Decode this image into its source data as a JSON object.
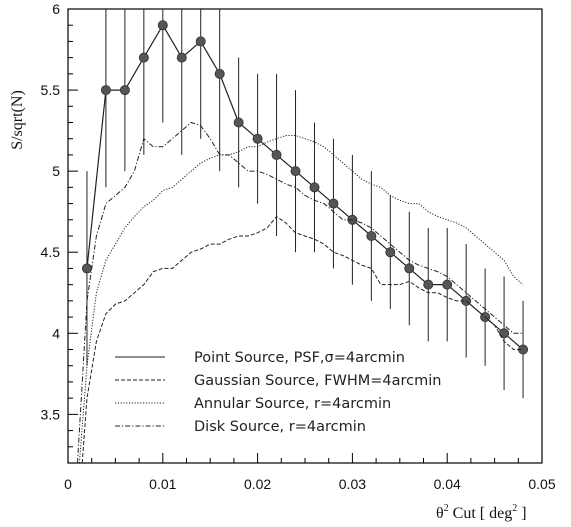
{
  "chart_data": {
    "type": "line",
    "xlabel_pre": "θ",
    "xlabel_sup": "2",
    "xlabel_mid": " Cut [ deg",
    "xlabel_sup2": "2",
    "xlabel_post": " ]",
    "ylabel": "S/sqrt(N)",
    "xlim": [
      0,
      0.05
    ],
    "ylim": [
      3.2,
      6
    ],
    "x_ticks": [
      0,
      0.01,
      0.02,
      0.03,
      0.04,
      0.05
    ],
    "y_ticks": [
      3.5,
      4,
      4.5,
      5,
      5.5,
      6
    ],
    "x_tick_labels": [
      "0",
      "0.01",
      "0.02",
      "0.03",
      "0.04",
      "0.05"
    ],
    "y_tick_labels": [
      "3.5",
      "4",
      "4.5",
      "5",
      "5.5",
      "6"
    ],
    "grid": false,
    "legend_position": "bottom-left",
    "series": [
      {
        "name": "Point Source, PSF,σ=4arcmin",
        "style": "solid",
        "markers": true,
        "error_bars": true,
        "x": [
          0.002,
          0.004,
          0.006,
          0.008,
          0.01,
          0.012,
          0.014,
          0.016,
          0.018,
          0.02,
          0.022,
          0.024,
          0.026,
          0.028,
          0.03,
          0.032,
          0.034,
          0.036,
          0.038,
          0.04,
          0.042,
          0.044,
          0.046,
          0.048
        ],
        "y": [
          4.4,
          5.5,
          5.5,
          5.7,
          5.9,
          5.7,
          5.8,
          5.6,
          5.3,
          5.2,
          5.1,
          5.0,
          4.9,
          4.8,
          4.7,
          4.6,
          4.5,
          4.4,
          4.3,
          4.3,
          4.2,
          4.1,
          4.0,
          3.9
        ],
        "err": [
          0.6,
          0.6,
          0.5,
          0.6,
          0.6,
          0.6,
          0.6,
          0.6,
          0.4,
          0.4,
          0.5,
          0.5,
          0.4,
          0.4,
          0.4,
          0.4,
          0.35,
          0.35,
          0.35,
          0.35,
          0.35,
          0.3,
          0.35,
          0.3
        ]
      },
      {
        "name": "Gaussian Source, FWHM=4arcmin",
        "style": "dashed",
        "x": [
          0.0015,
          0.002,
          0.003,
          0.004,
          0.005,
          0.006,
          0.007,
          0.008,
          0.009,
          0.01,
          0.011,
          0.012,
          0.013,
          0.014,
          0.015,
          0.016,
          0.017,
          0.018,
          0.019,
          0.02,
          0.021,
          0.022,
          0.023,
          0.024,
          0.025,
          0.026,
          0.027,
          0.028,
          0.029,
          0.03,
          0.031,
          0.032,
          0.033,
          0.034,
          0.035,
          0.036,
          0.037,
          0.038,
          0.039,
          0.04,
          0.041,
          0.042,
          0.043,
          0.044,
          0.045,
          0.046,
          0.047,
          0.048
        ],
        "y": [
          3.2,
          3.6,
          3.95,
          4.12,
          4.18,
          4.2,
          4.25,
          4.3,
          4.38,
          4.4,
          4.4,
          4.45,
          4.5,
          4.52,
          4.55,
          4.55,
          4.58,
          4.6,
          4.6,
          4.62,
          4.65,
          4.72,
          4.68,
          4.62,
          4.6,
          4.58,
          4.55,
          4.5,
          4.48,
          4.45,
          4.42,
          4.4,
          4.3,
          4.3,
          4.3,
          4.32,
          4.28,
          4.25,
          4.25,
          4.22,
          4.2,
          4.2,
          4.15,
          4.1,
          4.05,
          3.95,
          3.9,
          3.9
        ]
      },
      {
        "name": "Annular Source, r=4arcmin",
        "style": "dotted",
        "x": [
          0.0012,
          0.002,
          0.003,
          0.004,
          0.005,
          0.006,
          0.007,
          0.008,
          0.009,
          0.01,
          0.011,
          0.012,
          0.013,
          0.014,
          0.015,
          0.016,
          0.017,
          0.018,
          0.019,
          0.02,
          0.021,
          0.022,
          0.023,
          0.024,
          0.025,
          0.026,
          0.027,
          0.028,
          0.029,
          0.03,
          0.031,
          0.032,
          0.033,
          0.034,
          0.035,
          0.036,
          0.037,
          0.038,
          0.039,
          0.04,
          0.041,
          0.042,
          0.043,
          0.044,
          0.045,
          0.046,
          0.047,
          0.048
        ],
        "y": [
          3.2,
          3.8,
          4.25,
          4.45,
          4.55,
          4.65,
          4.72,
          4.78,
          4.82,
          4.88,
          4.9,
          4.95,
          5.0,
          5.05,
          5.08,
          5.1,
          5.1,
          5.12,
          5.15,
          5.15,
          5.18,
          5.2,
          5.22,
          5.22,
          5.2,
          5.18,
          5.15,
          5.1,
          5.05,
          5.0,
          4.95,
          4.92,
          4.9,
          4.85,
          4.82,
          4.8,
          4.8,
          4.75,
          4.72,
          4.7,
          4.68,
          4.65,
          4.6,
          4.55,
          4.5,
          4.45,
          4.35,
          4.3
        ]
      },
      {
        "name": "Disk Source, r=4arcmin",
        "style": "dashdot",
        "x": [
          0.001,
          0.002,
          0.003,
          0.004,
          0.005,
          0.006,
          0.007,
          0.008,
          0.009,
          0.01,
          0.011,
          0.012,
          0.013,
          0.014,
          0.015,
          0.016,
          0.017,
          0.018,
          0.019,
          0.02,
          0.021,
          0.022,
          0.023,
          0.024,
          0.025,
          0.026,
          0.027,
          0.028,
          0.029,
          0.03,
          0.031,
          0.032,
          0.033,
          0.034,
          0.035,
          0.036,
          0.037,
          0.038,
          0.039,
          0.04,
          0.041,
          0.042,
          0.043,
          0.044,
          0.045,
          0.046,
          0.047,
          0.048
        ],
        "y": [
          3.2,
          4.2,
          4.6,
          4.8,
          4.85,
          4.9,
          5.0,
          5.2,
          5.15,
          5.15,
          5.2,
          5.25,
          5.3,
          5.28,
          5.2,
          5.1,
          5.1,
          5.05,
          5.0,
          5.0,
          4.98,
          4.95,
          4.92,
          4.9,
          4.85,
          4.82,
          4.8,
          4.75,
          4.7,
          4.7,
          4.68,
          4.65,
          4.6,
          4.55,
          4.5,
          4.45,
          4.42,
          4.4,
          4.38,
          4.35,
          4.3,
          4.25,
          4.2,
          4.15,
          4.1,
          4.05,
          4.0,
          4.0
        ]
      }
    ]
  }
}
